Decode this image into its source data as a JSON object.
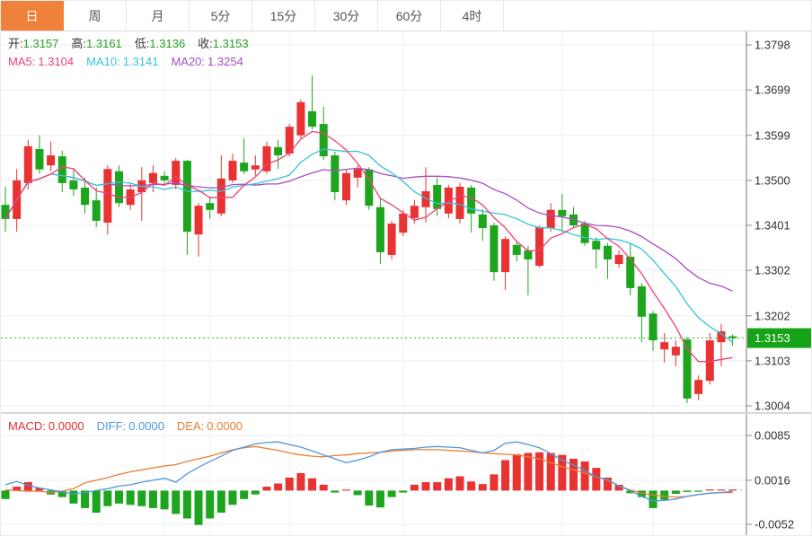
{
  "toolbar": {
    "tabs": [
      "日",
      "周",
      "月",
      "5分",
      "15分",
      "30分",
      "60分",
      "4时"
    ],
    "active_tab": "日"
  },
  "main_info": {
    "open_label": "开:",
    "open": "1.3157",
    "high_label": "高:",
    "high": "1.3161",
    "low_label": "低:",
    "low": "1.3136",
    "close_label": "收:",
    "close": "1.3153",
    "ma5_label": "MA5:",
    "ma5": "1.3104",
    "ma10_label": "MA10:",
    "ma10": "1.3141",
    "ma20_label": "MA20:",
    "ma20": "1.3254"
  },
  "macd_info": {
    "macd_label": "MACD:",
    "macd": "0.0000",
    "diff_label": "DIFF:",
    "diff": "0.0000",
    "dea_label": "DEA:",
    "dea": "0.0000"
  },
  "price_tag": "1.3153",
  "colors": {
    "up": "#e93232",
    "down": "#1ea51e",
    "ma5": "#ec407a",
    "ma10": "#36c3d8",
    "ma20": "#a64dbf",
    "diff": "#4f97d9",
    "dea": "#ed7d31",
    "tab_active": "#f0813a",
    "tag_bg": "#17a317",
    "dotted_price": "#2db82d",
    "grid": "#ededed",
    "axis": "#777777",
    "dashed_tail": "#8fd0e8"
  },
  "chart_data": {
    "type": "candlestick_with_macd",
    "title": "",
    "legend_position": "top-left-overlay",
    "grid": true,
    "price_axis_ticks": [
      1.3798,
      1.3699,
      1.3599,
      1.35,
      1.3401,
      1.3302,
      1.3202,
      1.3103,
      1.3004
    ],
    "current_price": 1.3153,
    "ma_periods": [
      5,
      10,
      20
    ],
    "vgrid_candle_indices": [
      14,
      18,
      25,
      35,
      49,
      57
    ],
    "candles_format": [
      "open",
      "high",
      "low",
      "close"
    ],
    "candles": [
      [
        1.3446,
        1.3486,
        1.3387,
        1.3415
      ],
      [
        1.3415,
        1.3525,
        1.3387,
        1.35
      ],
      [
        1.3494,
        1.3589,
        1.348,
        1.3575
      ],
      [
        1.3569,
        1.3599,
        1.3514,
        1.3524
      ],
      [
        1.3533,
        1.3585,
        1.352,
        1.3555
      ],
      [
        1.3553,
        1.3565,
        1.3474,
        1.3494
      ],
      [
        1.35,
        1.3525,
        1.3466,
        1.348
      ],
      [
        1.3484,
        1.3506,
        1.3427,
        1.3446
      ],
      [
        1.3456,
        1.3484,
        1.3397,
        1.3411
      ],
      [
        1.3407,
        1.3533,
        1.3381,
        1.3525
      ],
      [
        1.352,
        1.3533,
        1.3441,
        1.345
      ],
      [
        1.3446,
        1.3494,
        1.3435,
        1.348
      ],
      [
        1.3474,
        1.3529,
        1.3411,
        1.35
      ],
      [
        1.3494,
        1.3533,
        1.3474,
        1.3516
      ],
      [
        1.351,
        1.352,
        1.3494,
        1.35
      ],
      [
        1.349,
        1.3549,
        1.348,
        1.3543
      ],
      [
        1.3543,
        1.3545,
        1.3336,
        1.3387
      ],
      [
        1.3381,
        1.345,
        1.3332,
        1.3444
      ],
      [
        1.345,
        1.3464,
        1.3415,
        1.3435
      ],
      [
        1.3427,
        1.3555,
        1.3421,
        1.3504
      ],
      [
        1.35,
        1.3559,
        1.3494,
        1.3543
      ],
      [
        1.3539,
        1.3593,
        1.3514,
        1.352
      ],
      [
        1.3524,
        1.3555,
        1.351,
        1.3533
      ],
      [
        1.352,
        1.3585,
        1.3514,
        1.3575
      ],
      [
        1.3573,
        1.3589,
        1.3525,
        1.3555
      ],
      [
        1.3559,
        1.3624,
        1.3553,
        1.3618
      ],
      [
        1.3599,
        1.3678,
        1.3593,
        1.3672
      ],
      [
        1.3652,
        1.3731,
        1.3612,
        1.3618
      ],
      [
        1.3624,
        1.3662,
        1.3545,
        1.3553
      ],
      [
        1.3555,
        1.3563,
        1.3456,
        1.3474
      ],
      [
        1.3456,
        1.3524,
        1.3446,
        1.3516
      ],
      [
        1.3506,
        1.3533,
        1.3484,
        1.3525
      ],
      [
        1.3524,
        1.3529,
        1.3435,
        1.3444
      ],
      [
        1.3441,
        1.346,
        1.3316,
        1.3342
      ],
      [
        1.3336,
        1.3411,
        1.3326,
        1.3405
      ],
      [
        1.3385,
        1.3435,
        1.3377,
        1.3427
      ],
      [
        1.3417,
        1.3456,
        1.3405,
        1.3444
      ],
      [
        1.3441,
        1.3529,
        1.3407,
        1.3476
      ],
      [
        1.349,
        1.3506,
        1.3421,
        1.3437
      ],
      [
        1.3427,
        1.349,
        1.3417,
        1.3484
      ],
      [
        1.3415,
        1.3494,
        1.3405,
        1.3486
      ],
      [
        1.3484,
        1.349,
        1.3385,
        1.3427
      ],
      [
        1.3425,
        1.3437,
        1.3367,
        1.3395
      ],
      [
        1.3401,
        1.3407,
        1.3279,
        1.3298
      ],
      [
        1.3298,
        1.3377,
        1.3259,
        1.3371
      ],
      [
        1.3358,
        1.3367,
        1.3322,
        1.3336
      ],
      [
        1.3346,
        1.3356,
        1.3247,
        1.3326
      ],
      [
        1.3312,
        1.3401,
        1.3308,
        1.3397
      ],
      [
        1.3395,
        1.345,
        1.3387,
        1.3435
      ],
      [
        1.3435,
        1.347,
        1.3387,
        1.3421
      ],
      [
        1.3425,
        1.3441,
        1.3395,
        1.3401
      ],
      [
        1.3405,
        1.3411,
        1.3356,
        1.3362
      ],
      [
        1.3367,
        1.3375,
        1.3306,
        1.3348
      ],
      [
        1.3356,
        1.3362,
        1.3283,
        1.3326
      ],
      [
        1.3316,
        1.3346,
        1.3308,
        1.3336
      ],
      [
        1.3332,
        1.3362,
        1.3247,
        1.3263
      ],
      [
        1.3267,
        1.3273,
        1.3144,
        1.32
      ],
      [
        1.3207,
        1.3213,
        1.3125,
        1.3148
      ],
      [
        1.3128,
        1.3164,
        1.3099,
        1.3144
      ],
      [
        1.3115,
        1.3148,
        1.3091,
        1.3134
      ],
      [
        1.315,
        1.3156,
        1.301,
        1.302
      ],
      [
        1.303,
        1.3071,
        1.3016,
        1.3061
      ],
      [
        1.3059,
        1.3164,
        1.3051,
        1.3148
      ],
      [
        1.3144,
        1.3184,
        1.3091,
        1.3168
      ],
      [
        1.3157,
        1.3161,
        1.3136,
        1.3153
      ]
    ],
    "macd_axis_ticks": [
      0.0085,
      0.0016,
      -0.0052
    ],
    "macd_histogram": [
      -0.0013,
      0.0006,
      0.0013,
      0.0004,
      -0.0006,
      -0.001,
      -0.002,
      -0.0027,
      -0.0034,
      -0.0024,
      -0.002,
      -0.0022,
      -0.0024,
      -0.0027,
      -0.0029,
      -0.0036,
      -0.0043,
      -0.0053,
      -0.0043,
      -0.0034,
      -0.0022,
      -0.0013,
      -0.0006,
      0.0006,
      0.0011,
      0.002,
      0.0027,
      0.0019,
      0.0009,
      -0.0003,
      0.0001,
      -0.0007,
      -0.0023,
      -0.0026,
      -0.001,
      -0.0003,
      0.0009,
      0.0013,
      0.0013,
      0.0019,
      0.0022,
      0.0014,
      0.001,
      0.0025,
      0.0047,
      0.0056,
      0.0058,
      0.0059,
      0.0058,
      0.0055,
      0.0049,
      0.0045,
      0.0035,
      0.002,
      0.0009,
      -0.0004,
      -0.001,
      -0.0027,
      -0.0014,
      -0.0005,
      -0.0002,
      -0.0001,
      0.0001,
      0.0001,
      0.0
    ],
    "diff_line": [
      0.0009,
      0.0014,
      0.0008,
      0.0004,
      0.0001,
      -0.0002,
      -0.0005,
      -0.0003,
      0.0,
      0.0003,
      0.0007,
      0.0009,
      0.0013,
      0.0016,
      0.0019,
      0.0013,
      0.0026,
      0.0036,
      0.0045,
      0.0053,
      0.0062,
      0.0067,
      0.0072,
      0.0074,
      0.0075,
      0.0071,
      0.0067,
      0.0061,
      0.0055,
      0.0049,
      0.0043,
      0.0047,
      0.0052,
      0.0059,
      0.0063,
      0.0064,
      0.0065,
      0.0067,
      0.0068,
      0.0067,
      0.0066,
      0.0062,
      0.0058,
      0.0062,
      0.0073,
      0.0075,
      0.0071,
      0.0066,
      0.0057,
      0.0047,
      0.0039,
      0.0031,
      0.0021,
      0.0017,
      0.0007,
      0.0,
      -0.0009,
      -0.0016,
      -0.0015,
      -0.0013,
      -0.0009,
      -0.0006,
      -0.0004,
      -0.0003,
      -0.0001
    ],
    "dea_line": [
      0.0001,
      0.0,
      -0.0001,
      -0.0001,
      -0.0003,
      -0.0001,
      0.0003,
      0.0012,
      0.0016,
      0.002,
      0.0025,
      0.0029,
      0.0032,
      0.0035,
      0.0038,
      0.004,
      0.0045,
      0.0049,
      0.0053,
      0.0058,
      0.0063,
      0.0066,
      0.0068,
      0.0065,
      0.0062,
      0.0058,
      0.0055,
      0.0053,
      0.0052,
      0.0054,
      0.0055,
      0.0057,
      0.0058,
      0.0059,
      0.0061,
      0.0062,
      0.0063,
      0.0063,
      0.0063,
      0.0062,
      0.0061,
      0.006,
      0.0058,
      0.0057,
      0.0056,
      0.0055,
      0.0052,
      0.0049,
      0.0043,
      0.0037,
      0.0032,
      0.0027,
      0.0021,
      0.0016,
      0.0007,
      0.0001,
      -0.0004,
      -0.0007,
      -0.0009,
      -0.001,
      -0.0009,
      -0.0006,
      -0.0004,
      -0.0003,
      -0.0003
    ]
  }
}
